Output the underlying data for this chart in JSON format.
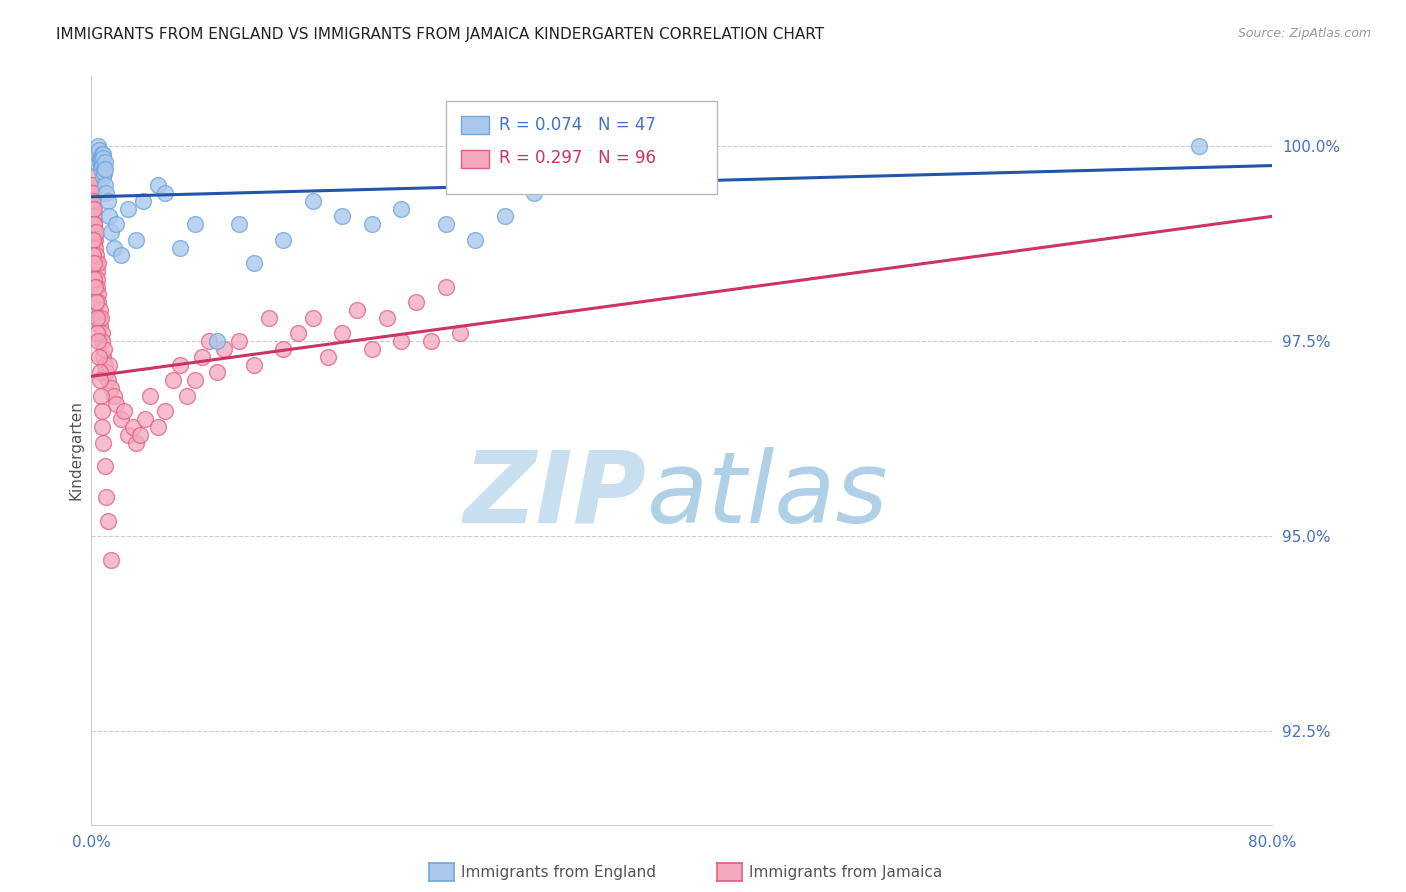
{
  "title": "IMMIGRANTS FROM ENGLAND VS IMMIGRANTS FROM JAMAICA KINDERGARTEN CORRELATION CHART",
  "source": "Source: ZipAtlas.com",
  "ylabel": "Kindergarten",
  "y_ticks": [
    92.5,
    95.0,
    97.5,
    100.0
  ],
  "y_tick_labels": [
    "92.5%",
    "95.0%",
    "97.5%",
    "100.0%"
  ],
  "x_min": 0.0,
  "x_max": 80.0,
  "y_min": 91.3,
  "y_max": 100.9,
  "england_color": "#6fa8dc",
  "england_fill": "#aac8ed",
  "jamaica_color": "#e06080",
  "jamaica_fill": "#f4a8bc",
  "england_R": 0.074,
  "england_N": 47,
  "jamaica_R": 0.297,
  "jamaica_N": 96,
  "eng_trend_color": "#2255aa",
  "jam_trend_color": "#cc3366",
  "eng_trend_x": [
    0.0,
    80.0
  ],
  "eng_trend_y": [
    99.35,
    99.75
  ],
  "jam_trend_x": [
    0.0,
    80.0
  ],
  "jam_trend_y": [
    97.05,
    99.1
  ],
  "england_x": [
    0.3,
    0.4,
    0.45,
    0.5,
    0.55,
    0.6,
    0.62,
    0.65,
    0.68,
    0.7,
    0.72,
    0.75,
    0.78,
    0.8,
    0.82,
    0.85,
    0.88,
    0.9,
    0.92,
    0.95,
    1.0,
    1.1,
    1.2,
    1.3,
    1.5,
    1.7,
    2.0,
    2.5,
    3.0,
    3.5,
    4.5,
    5.0,
    6.0,
    7.0,
    8.5,
    10.0,
    11.0,
    13.0,
    15.0,
    17.0,
    19.0,
    21.0,
    24.0,
    26.0,
    28.0,
    30.0,
    75.0
  ],
  "england_y": [
    99.8,
    99.9,
    100.0,
    99.95,
    99.85,
    99.8,
    99.75,
    99.85,
    99.7,
    99.9,
    99.8,
    99.75,
    99.9,
    99.85,
    99.6,
    99.7,
    99.65,
    99.8,
    99.5,
    99.7,
    99.4,
    99.3,
    99.1,
    98.9,
    98.7,
    99.0,
    98.6,
    99.2,
    98.8,
    99.3,
    99.5,
    99.4,
    98.7,
    99.0,
    97.5,
    99.0,
    98.5,
    98.8,
    99.3,
    99.1,
    99.0,
    99.2,
    99.0,
    98.8,
    99.1,
    99.4,
    100.0
  ],
  "jamaica_x": [
    0.05,
    0.06,
    0.07,
    0.08,
    0.09,
    0.1,
    0.11,
    0.12,
    0.13,
    0.14,
    0.15,
    0.16,
    0.17,
    0.18,
    0.19,
    0.2,
    0.22,
    0.25,
    0.28,
    0.3,
    0.33,
    0.35,
    0.38,
    0.4,
    0.42,
    0.45,
    0.48,
    0.5,
    0.55,
    0.6,
    0.65,
    0.7,
    0.75,
    0.8,
    0.85,
    0.9,
    1.0,
    1.1,
    1.2,
    1.3,
    1.5,
    1.7,
    2.0,
    2.2,
    2.5,
    2.8,
    3.0,
    3.3,
    3.6,
    4.0,
    4.5,
    5.0,
    5.5,
    6.0,
    6.5,
    7.0,
    7.5,
    8.0,
    8.5,
    9.0,
    10.0,
    11.0,
    12.0,
    13.0,
    14.0,
    15.0,
    16.0,
    17.0,
    18.0,
    19.0,
    20.0,
    21.0,
    22.0,
    23.0,
    24.0,
    25.0,
    0.08,
    0.1,
    0.15,
    0.2,
    0.25,
    0.3,
    0.35,
    0.4,
    0.45,
    0.5,
    0.55,
    0.6,
    0.65,
    0.7,
    0.75,
    0.8,
    0.9,
    1.0,
    1.1,
    1.3
  ],
  "jamaica_y": [
    99.5,
    99.4,
    99.3,
    99.6,
    99.4,
    99.5,
    99.3,
    99.2,
    99.4,
    99.3,
    99.1,
    99.0,
    98.8,
    99.2,
    98.9,
    99.0,
    98.8,
    98.7,
    98.9,
    98.5,
    98.6,
    98.4,
    98.3,
    98.2,
    98.5,
    98.1,
    98.0,
    97.8,
    97.9,
    97.7,
    97.8,
    97.6,
    97.5,
    97.3,
    97.4,
    97.2,
    97.1,
    97.0,
    97.2,
    96.9,
    96.8,
    96.7,
    96.5,
    96.6,
    96.3,
    96.4,
    96.2,
    96.3,
    96.5,
    96.8,
    96.4,
    96.6,
    97.0,
    97.2,
    96.8,
    97.0,
    97.3,
    97.5,
    97.1,
    97.4,
    97.5,
    97.2,
    97.8,
    97.4,
    97.6,
    97.8,
    97.3,
    97.6,
    97.9,
    97.4,
    97.8,
    97.5,
    98.0,
    97.5,
    98.2,
    97.6,
    98.8,
    98.6,
    98.5,
    98.3,
    98.2,
    98.0,
    97.8,
    97.6,
    97.5,
    97.3,
    97.1,
    97.0,
    96.8,
    96.6,
    96.4,
    96.2,
    95.9,
    95.5,
    95.2,
    94.7
  ],
  "watermark_zip_color": "#c8dff0",
  "watermark_atlas_color": "#b0d0e8",
  "background_color": "#ffffff",
  "grid_color": "#cccccc",
  "tick_color": "#4472c4",
  "title_color": "#222222",
  "source_color": "#999999"
}
